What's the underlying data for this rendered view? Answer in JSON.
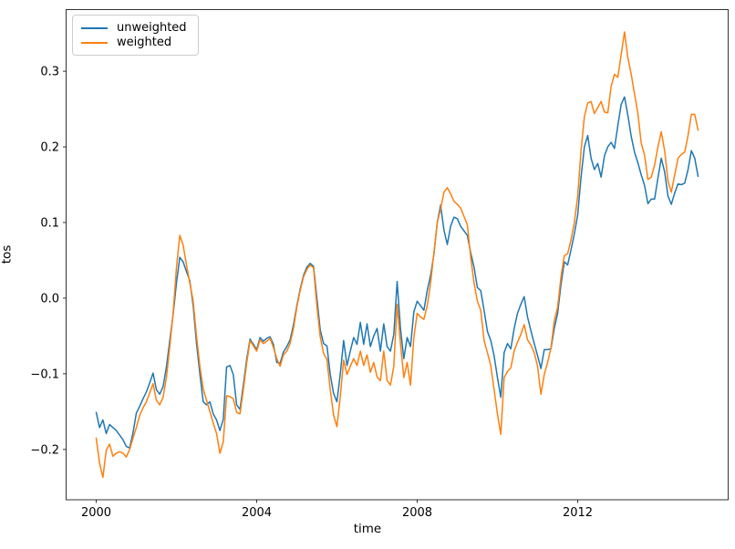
{
  "chart_data": {
    "type": "line",
    "title": "",
    "xlabel": "time",
    "ylabel": "tos",
    "x_unit": "decimal year, monthly samples from Jan 2000 to Jan 2015",
    "x_start": 2000.0,
    "x_step": 0.0833333,
    "n_points": 181,
    "xlim": [
      1999.25,
      2015.75
    ],
    "ylim": [
      -0.2665,
      0.3815
    ],
    "xticks": [
      2000,
      2004,
      2008,
      2012
    ],
    "yticks": [
      -0.2,
      -0.1,
      0.0,
      0.1,
      0.2,
      0.3
    ],
    "grid": false,
    "legend_position": "upper left",
    "frame_color": "#000000",
    "line_width": 1.5,
    "series": [
      {
        "name": "unweighted",
        "color": "#1f77b4",
        "values": [
          -0.151,
          -0.171,
          -0.161,
          -0.179,
          -0.167,
          -0.171,
          -0.175,
          -0.181,
          -0.187,
          -0.196,
          -0.198,
          -0.178,
          -0.152,
          -0.143,
          -0.133,
          -0.124,
          -0.112,
          -0.099,
          -0.121,
          -0.127,
          -0.117,
          -0.091,
          -0.056,
          -0.022,
          0.02,
          0.054,
          0.048,
          0.035,
          0.023,
          -0.01,
          -0.06,
          -0.1,
          -0.137,
          -0.141,
          -0.137,
          -0.153,
          -0.161,
          -0.175,
          -0.16,
          -0.091,
          -0.089,
          -0.101,
          -0.141,
          -0.147,
          -0.115,
          -0.081,
          -0.054,
          -0.061,
          -0.068,
          -0.052,
          -0.057,
          -0.053,
          -0.051,
          -0.061,
          -0.085,
          -0.086,
          -0.071,
          -0.064,
          -0.055,
          -0.035,
          -0.01,
          0.012,
          0.03,
          0.041,
          0.046,
          0.042,
          0.0,
          -0.042,
          -0.06,
          -0.063,
          -0.101,
          -0.126,
          -0.137,
          -0.1,
          -0.056,
          -0.089,
          -0.07,
          -0.052,
          -0.061,
          -0.032,
          -0.061,
          -0.034,
          -0.064,
          -0.05,
          -0.04,
          -0.07,
          -0.034,
          -0.064,
          -0.07,
          -0.048,
          0.022,
          -0.04,
          -0.08,
          -0.052,
          -0.064,
          -0.018,
          -0.004,
          -0.01,
          -0.016,
          0.01,
          0.03,
          0.058,
          0.1,
          0.123,
          0.09,
          0.071,
          0.095,
          0.107,
          0.105,
          0.095,
          0.089,
          0.083,
          0.06,
          0.041,
          0.014,
          0.01,
          -0.016,
          -0.044,
          -0.056,
          -0.076,
          -0.105,
          -0.131,
          -0.072,
          -0.06,
          -0.067,
          -0.04,
          -0.02,
          -0.008,
          0.002,
          -0.025,
          -0.043,
          -0.06,
          -0.076,
          -0.093,
          -0.068,
          -0.068,
          -0.067,
          -0.04,
          -0.02,
          0.018,
          0.048,
          0.044,
          0.064,
          0.085,
          0.11,
          0.16,
          0.2,
          0.215,
          0.185,
          0.17,
          0.178,
          0.16,
          0.188,
          0.2,
          0.206,
          0.198,
          0.228,
          0.256,
          0.266,
          0.242,
          0.214,
          0.193,
          0.179,
          0.163,
          0.149,
          0.125,
          0.131,
          0.131,
          0.159,
          0.185,
          0.167,
          0.135,
          0.124,
          0.139,
          0.151,
          0.15,
          0.152,
          0.17,
          0.195,
          0.185,
          0.161
        ]
      },
      {
        "name": "weighted",
        "color": "#ff7f0e",
        "values": [
          -0.185,
          -0.218,
          -0.237,
          -0.201,
          -0.193,
          -0.209,
          -0.205,
          -0.203,
          -0.205,
          -0.21,
          -0.2,
          -0.185,
          -0.171,
          -0.155,
          -0.145,
          -0.137,
          -0.125,
          -0.113,
          -0.135,
          -0.141,
          -0.131,
          -0.105,
          -0.064,
          -0.02,
          0.04,
          0.083,
          0.07,
          0.044,
          0.02,
          -0.004,
          -0.05,
          -0.09,
          -0.12,
          -0.135,
          -0.15,
          -0.165,
          -0.179,
          -0.205,
          -0.19,
          -0.129,
          -0.13,
          -0.133,
          -0.151,
          -0.153,
          -0.121,
          -0.086,
          -0.056,
          -0.063,
          -0.07,
          -0.055,
          -0.06,
          -0.057,
          -0.053,
          -0.065,
          -0.08,
          -0.09,
          -0.075,
          -0.07,
          -0.06,
          -0.04,
          -0.012,
          0.01,
          0.028,
          0.038,
          0.044,
          0.04,
          -0.01,
          -0.051,
          -0.073,
          -0.081,
          -0.121,
          -0.155,
          -0.17,
          -0.13,
          -0.082,
          -0.101,
          -0.09,
          -0.08,
          -0.089,
          -0.07,
          -0.089,
          -0.075,
          -0.098,
          -0.085,
          -0.104,
          -0.109,
          -0.07,
          -0.109,
          -0.115,
          -0.09,
          -0.008,
          -0.06,
          -0.105,
          -0.085,
          -0.115,
          -0.052,
          -0.02,
          -0.025,
          -0.028,
          -0.01,
          0.02,
          0.06,
          0.1,
          0.118,
          0.14,
          0.146,
          0.138,
          0.128,
          0.124,
          0.119,
          0.108,
          0.097,
          0.054,
          0.02,
          -0.004,
          -0.016,
          -0.056,
          -0.072,
          -0.089,
          -0.121,
          -0.153,
          -0.18,
          -0.105,
          -0.097,
          -0.092,
          -0.07,
          -0.058,
          -0.048,
          -0.035,
          -0.055,
          -0.062,
          -0.072,
          -0.09,
          -0.127,
          -0.101,
          -0.085,
          -0.066,
          -0.03,
          -0.012,
          0.028,
          0.056,
          0.059,
          0.077,
          0.1,
          0.135,
          0.195,
          0.24,
          0.258,
          0.26,
          0.244,
          0.252,
          0.26,
          0.246,
          0.245,
          0.28,
          0.296,
          0.292,
          0.322,
          0.352,
          0.318,
          0.296,
          0.27,
          0.244,
          0.205,
          0.189,
          0.157,
          0.16,
          0.176,
          0.2,
          0.22,
          0.195,
          0.155,
          0.14,
          0.163,
          0.185,
          0.19,
          0.193,
          0.215,
          0.243,
          0.243,
          0.222
        ]
      }
    ]
  }
}
